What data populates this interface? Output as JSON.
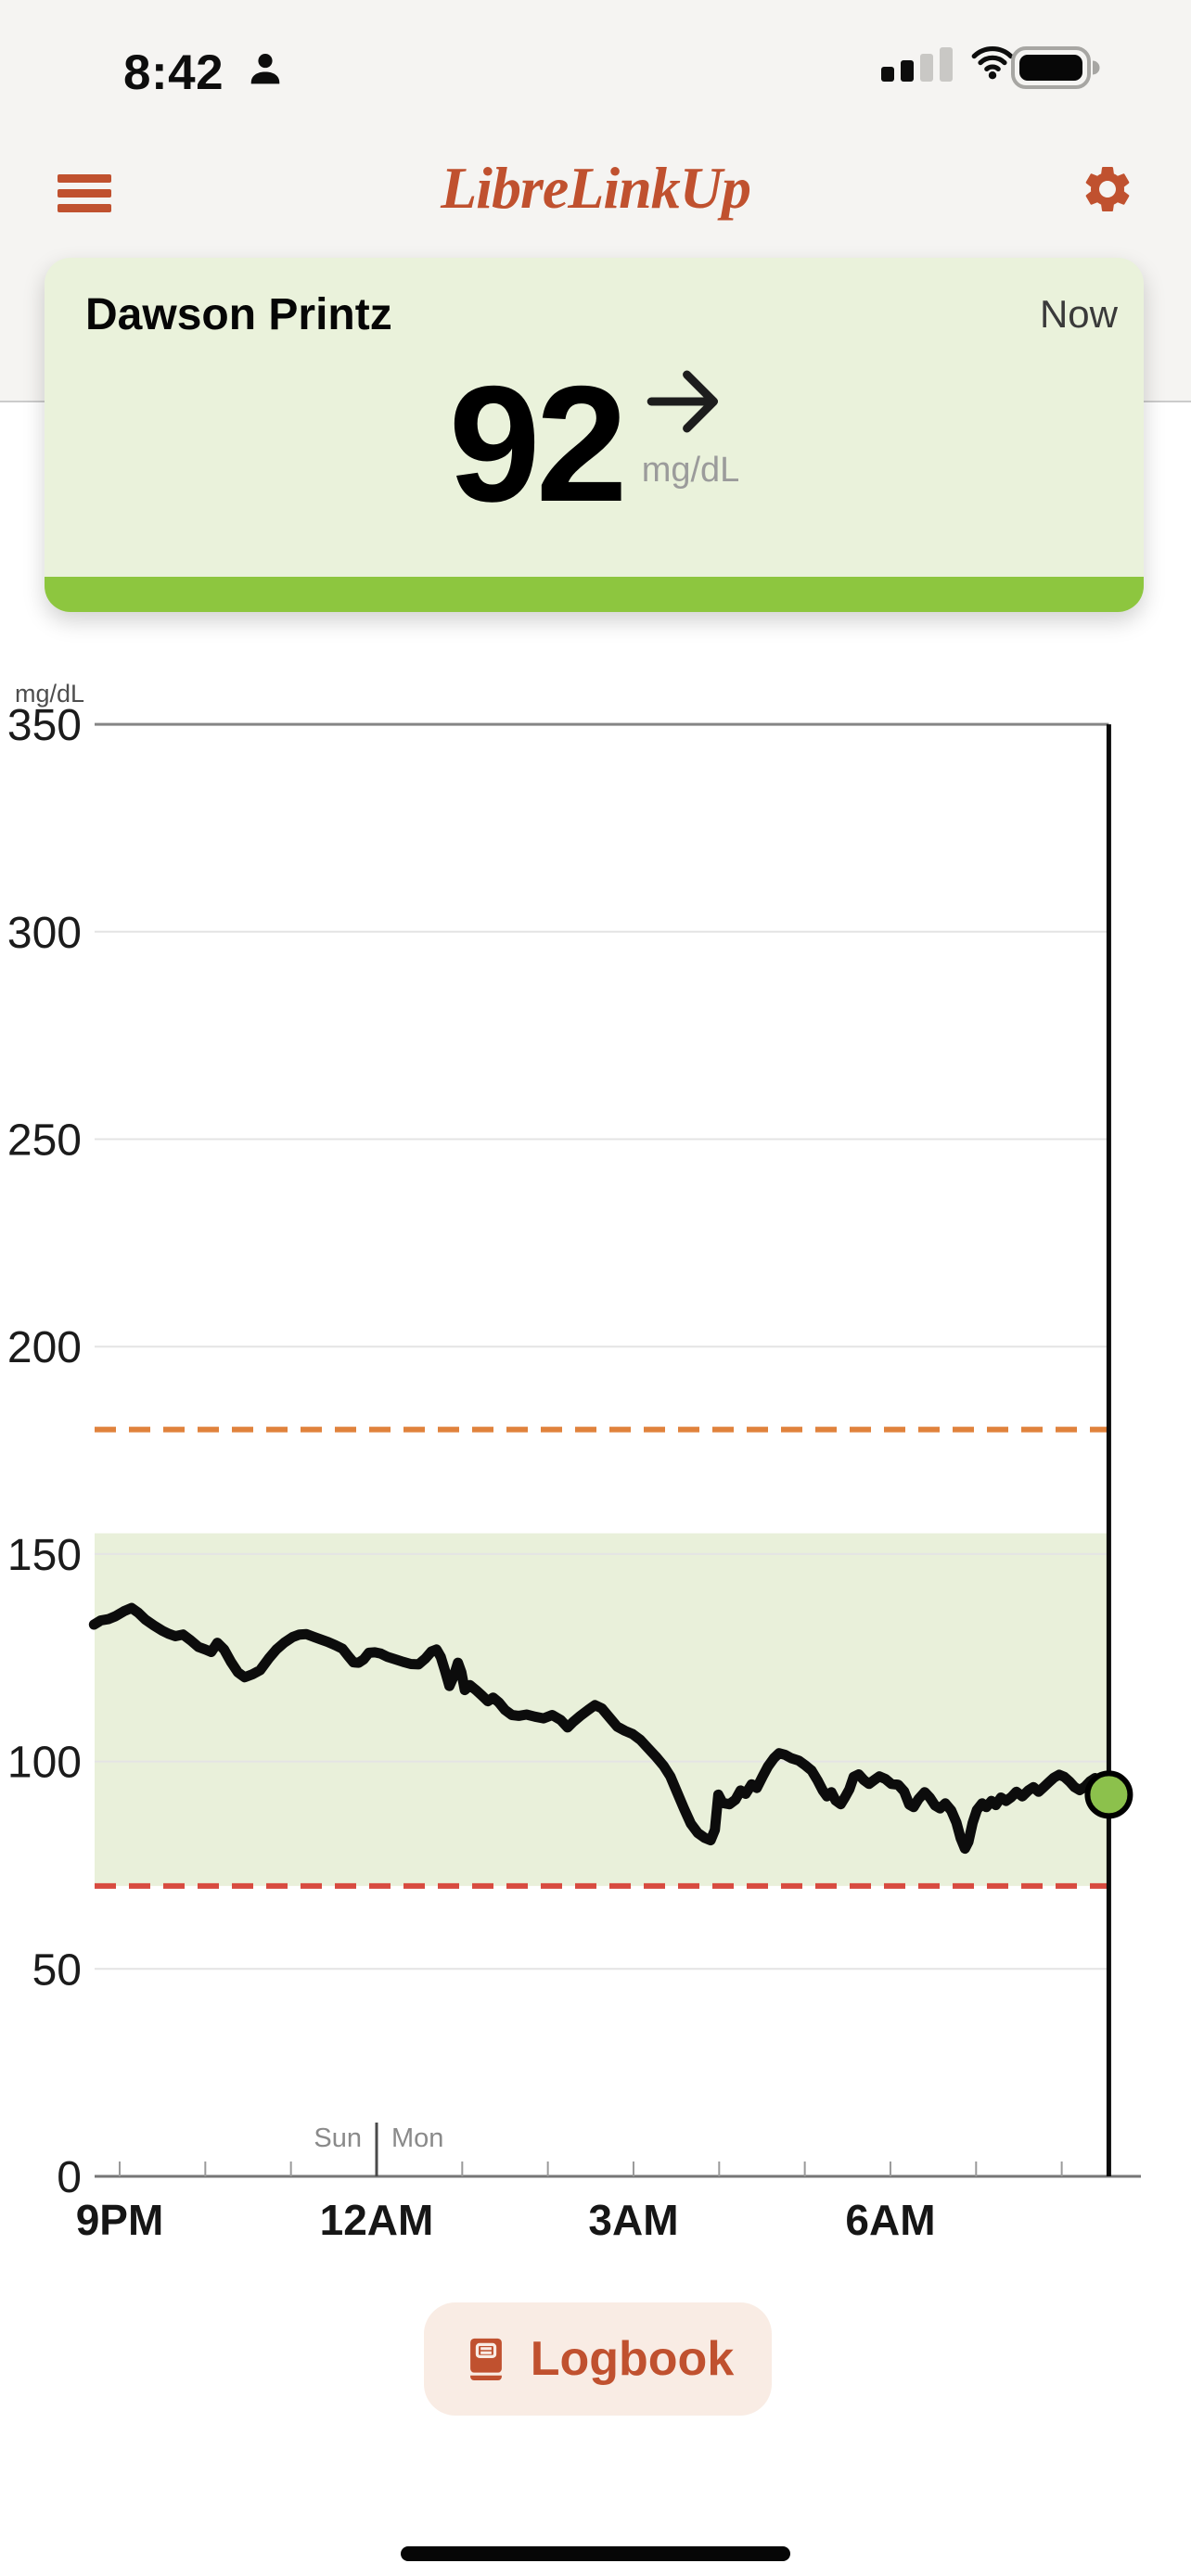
{
  "theme": {
    "accent": "#c0512f",
    "chrome_bg": "#f5f4f2",
    "card_green": "#eaf2db",
    "strip_green": "#8dc63f",
    "range_green": "#e9f0da",
    "dot_green": "#8cc14c",
    "high_orange": "#e0823c",
    "low_red": "#d84b40",
    "peach": "#f9ece4"
  },
  "status_bar": {
    "time": "8:42",
    "person_icon": "user-silhouette",
    "signal_bars_total": 4,
    "signal_bars_filled": 2,
    "wifi": "full",
    "battery": "full"
  },
  "header": {
    "title": "LibreLinkUp",
    "menu_icon": "hamburger",
    "settings_icon": "gear"
  },
  "patient_card": {
    "name": "Dawson Printz",
    "when": "Now",
    "glucose_value": "92",
    "glucose_unit": "mg/dL",
    "trend": "steady-right-arrow"
  },
  "logbook": {
    "label": "Logbook",
    "icon": "book"
  },
  "chart_data": {
    "type": "line",
    "ylabel": "mg/dL",
    "ylim": [
      0,
      350
    ],
    "yticks": [
      0,
      50,
      100,
      150,
      200,
      250,
      300,
      350
    ],
    "xtick_labels": [
      "9PM",
      "12AM",
      "3AM",
      "6AM"
    ],
    "xtick_hours": [
      0,
      3,
      6,
      9
    ],
    "hour_tick_range": [
      0,
      11
    ],
    "day_boundary": {
      "hour": 3,
      "left_label": "Sun",
      "right_label": "Mon"
    },
    "high_threshold": 180,
    "low_threshold": 70,
    "target_range": [
      70,
      155
    ],
    "grid": true,
    "legend": "none",
    "current": {
      "hour": 11.55,
      "value": 92
    },
    "series": [
      [
        -0.3,
        133
      ],
      [
        -0.22,
        134
      ],
      [
        -0.13,
        134.3
      ],
      [
        -0.05,
        135
      ],
      [
        0.05,
        136.2
      ],
      [
        0.14,
        137
      ],
      [
        0.22,
        135.8
      ],
      [
        0.3,
        134.2
      ],
      [
        0.4,
        132.8
      ],
      [
        0.5,
        131.5
      ],
      [
        0.57,
        130.8
      ],
      [
        0.65,
        130.2
      ],
      [
        0.74,
        130.6
      ],
      [
        0.83,
        129.2
      ],
      [
        0.92,
        127.6
      ],
      [
        1.0,
        127
      ],
      [
        1.07,
        126.4
      ],
      [
        1.14,
        128.6
      ],
      [
        1.22,
        127
      ],
      [
        1.3,
        124
      ],
      [
        1.38,
        121.5
      ],
      [
        1.46,
        120.3
      ],
      [
        1.55,
        121
      ],
      [
        1.64,
        122
      ],
      [
        1.74,
        124.8
      ],
      [
        1.83,
        127
      ],
      [
        1.92,
        128.6
      ],
      [
        2.02,
        130
      ],
      [
        2.1,
        130.6
      ],
      [
        2.18,
        130.7
      ],
      [
        2.27,
        130
      ],
      [
        2.35,
        129.4
      ],
      [
        2.43,
        128.8
      ],
      [
        2.52,
        128
      ],
      [
        2.6,
        127.2
      ],
      [
        2.67,
        125.4
      ],
      [
        2.73,
        123.9
      ],
      [
        2.79,
        123.8
      ],
      [
        2.85,
        124.6
      ],
      [
        2.91,
        126.2
      ],
      [
        2.98,
        126.3
      ],
      [
        3.05,
        126
      ],
      [
        3.13,
        125.2
      ],
      [
        3.22,
        124.6
      ],
      [
        3.31,
        124
      ],
      [
        3.4,
        123.5
      ],
      [
        3.49,
        123.4
      ],
      [
        3.57,
        124.8
      ],
      [
        3.64,
        126.5
      ],
      [
        3.7,
        127
      ],
      [
        3.75,
        125.2
      ],
      [
        3.8,
        121.8
      ],
      [
        3.85,
        118.2
      ],
      [
        3.9,
        120.5
      ],
      [
        3.95,
        123.8
      ],
      [
        3.99,
        121.5
      ],
      [
        4.03,
        117.2
      ],
      [
        4.09,
        118.4
      ],
      [
        4.16,
        117.2
      ],
      [
        4.23,
        115.9
      ],
      [
        4.3,
        114.5
      ],
      [
        4.36,
        115.4
      ],
      [
        4.43,
        114.2
      ],
      [
        4.5,
        112.4
      ],
      [
        4.58,
        111.2
      ],
      [
        4.66,
        111
      ],
      [
        4.75,
        111.3
      ],
      [
        4.85,
        110.8
      ],
      [
        4.95,
        110.4
      ],
      [
        5.05,
        111.2
      ],
      [
        5.15,
        110
      ],
      [
        5.23,
        108.2
      ],
      [
        5.3,
        109.6
      ],
      [
        5.38,
        111
      ],
      [
        5.47,
        112.4
      ],
      [
        5.55,
        113.6
      ],
      [
        5.63,
        112.8
      ],
      [
        5.72,
        110.6
      ],
      [
        5.81,
        108.4
      ],
      [
        5.9,
        107.4
      ],
      [
        5.99,
        106.6
      ],
      [
        6.08,
        105.2
      ],
      [
        6.17,
        103.2
      ],
      [
        6.26,
        101.2
      ],
      [
        6.35,
        99
      ],
      [
        6.43,
        96.4
      ],
      [
        6.51,
        92.5
      ],
      [
        6.59,
        88.6
      ],
      [
        6.67,
        85
      ],
      [
        6.75,
        82.8
      ],
      [
        6.83,
        81.6
      ],
      [
        6.9,
        81
      ],
      [
        6.95,
        83.5
      ],
      [
        6.99,
        92
      ],
      [
        7.04,
        90
      ],
      [
        7.12,
        89.7
      ],
      [
        7.19,
        90.8
      ],
      [
        7.25,
        93
      ],
      [
        7.31,
        92.2
      ],
      [
        7.38,
        94.5
      ],
      [
        7.44,
        93.6
      ],
      [
        7.51,
        96.5
      ],
      [
        7.57,
        98.8
      ],
      [
        7.64,
        100.8
      ],
      [
        7.7,
        102
      ],
      [
        7.77,
        101.6
      ],
      [
        7.84,
        100.8
      ],
      [
        7.93,
        100.2
      ],
      [
        8.01,
        99
      ],
      [
        8.08,
        97.8
      ],
      [
        8.15,
        95.4
      ],
      [
        8.21,
        93
      ],
      [
        8.26,
        91.6
      ],
      [
        8.31,
        92.6
      ],
      [
        8.36,
        90.6
      ],
      [
        8.42,
        89.7
      ],
      [
        8.47,
        91.4
      ],
      [
        8.52,
        93.3
      ],
      [
        8.57,
        96.3
      ],
      [
        8.63,
        96.9
      ],
      [
        8.69,
        95.5
      ],
      [
        8.75,
        94.6
      ],
      [
        8.81,
        95.5
      ],
      [
        8.87,
        96.4
      ],
      [
        8.94,
        95.8
      ],
      [
        9.01,
        94.6
      ],
      [
        9.09,
        94.4
      ],
      [
        9.16,
        92.8
      ],
      [
        9.22,
        89.6
      ],
      [
        9.27,
        89
      ],
      [
        9.33,
        91
      ],
      [
        9.4,
        92.6
      ],
      [
        9.46,
        91.3
      ],
      [
        9.52,
        89.4
      ],
      [
        9.58,
        88.7
      ],
      [
        9.64,
        89.9
      ],
      [
        9.71,
        88.2
      ],
      [
        9.77,
        85.3
      ],
      [
        9.82,
        81.5
      ],
      [
        9.87,
        79
      ],
      [
        9.91,
        80.6
      ],
      [
        9.96,
        85.2
      ],
      [
        10.01,
        88.3
      ],
      [
        10.07,
        89.9
      ],
      [
        10.12,
        89
      ],
      [
        10.18,
        90.5
      ],
      [
        10.23,
        89.5
      ],
      [
        10.29,
        91.3
      ],
      [
        10.35,
        90.5
      ],
      [
        10.41,
        91.4
      ],
      [
        10.47,
        92.7
      ],
      [
        10.54,
        91.6
      ],
      [
        10.61,
        93
      ],
      [
        10.67,
        93.8
      ],
      [
        10.73,
        92.7
      ],
      [
        10.79,
        93.8
      ],
      [
        10.85,
        95
      ],
      [
        10.91,
        96.1
      ],
      [
        10.97,
        96.8
      ],
      [
        11.03,
        96.3
      ],
      [
        11.09,
        95.2
      ],
      [
        11.15,
        93.8
      ],
      [
        11.21,
        93.1
      ],
      [
        11.27,
        93.9
      ],
      [
        11.33,
        95.2
      ],
      [
        11.39,
        96
      ],
      [
        11.45,
        94.6
      ],
      [
        11.5,
        93.2
      ],
      [
        11.55,
        92
      ]
    ]
  }
}
